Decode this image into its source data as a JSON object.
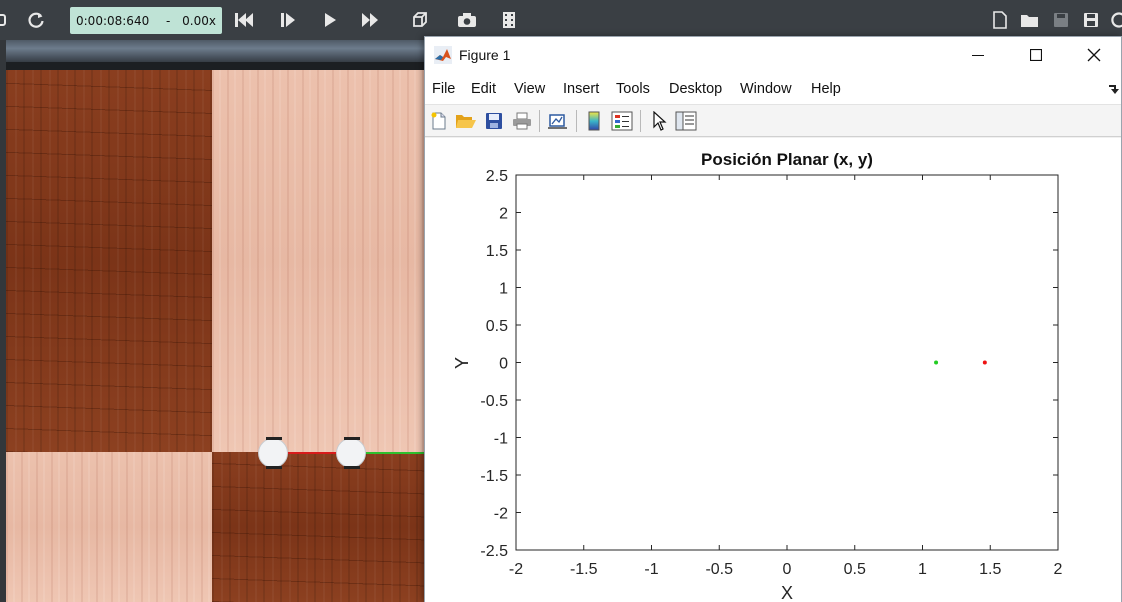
{
  "simulator": {
    "time": "0:00:08:640",
    "separator": "-",
    "speed": "0.00x"
  },
  "figure": {
    "title": "Figure 1",
    "menu": [
      "File",
      "Edit",
      "View",
      "Insert",
      "Tools",
      "Desktop",
      "Window",
      "Help"
    ]
  },
  "chart_data": {
    "type": "scatter",
    "title": "Posición Planar (x, y)",
    "xlabel": "X",
    "ylabel": "Y",
    "xlim": [
      -2,
      2
    ],
    "ylim": [
      -2.5,
      2.5
    ],
    "xticks": [
      -2,
      -1.5,
      -1,
      -0.5,
      0,
      0.5,
      1,
      1.5,
      2
    ],
    "yticks": [
      -2.5,
      -2,
      -1.5,
      -1,
      -0.5,
      0,
      0.5,
      1,
      1.5,
      2,
      2.5
    ],
    "grid": false,
    "series": [
      {
        "color": "#22cc22",
        "points": [
          [
            1.1,
            0
          ]
        ]
      },
      {
        "color": "#ee1111",
        "points": [
          [
            1.46,
            0
          ]
        ]
      }
    ]
  },
  "colors": {
    "sim_toolbar": "#3a3f44",
    "time_box": "#bfe3d6",
    "dark_wood": "#7b3418",
    "light_wood": "#e7b8a3"
  }
}
